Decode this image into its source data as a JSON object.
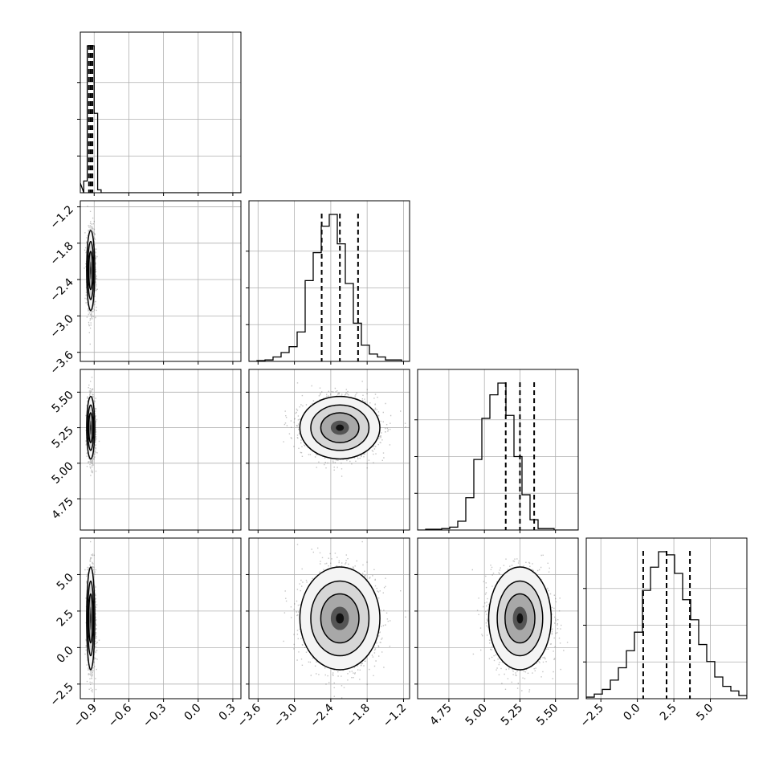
{
  "chart_data": {
    "type": "corner",
    "grid": true,
    "quantile_style": "dashed",
    "colors": {
      "line": "#000000",
      "grid": "#b0b0b0",
      "points": "#555555",
      "density": "#000000"
    },
    "parameters": [
      {
        "range": [
          -1.02,
          0.37
        ],
        "ticks": [
          -0.9,
          -0.6,
          -0.3,
          0.0,
          0.3
        ],
        "tick_labels": [
          "−0.9",
          "−0.6",
          "−0.3",
          "0.0",
          "0.3"
        ],
        "quantiles": [
          -0.945,
          -0.93,
          -0.915
        ],
        "center": -0.93,
        "sd": 0.016,
        "hist_counts": [
          0.08,
          1.0,
          1.0,
          0.54,
          0.02
        ]
      },
      {
        "range": [
          -3.75,
          -1.1
        ],
        "ticks": [
          -3.6,
          -3.0,
          -2.4,
          -1.8,
          -1.2
        ],
        "tick_labels": [
          "−3.6",
          "−3.0",
          "−2.4",
          "−1.8",
          "−1.2"
        ],
        "quantiles": [
          -2.55,
          -2.25,
          -1.95
        ],
        "center": -2.25,
        "sd": 0.3,
        "hist_counts": [
          0,
          0.005,
          0.01,
          0.03,
          0.06,
          0.1,
          0.2,
          0.55,
          0.74,
          0.92,
          1.0,
          0.8,
          0.53,
          0.26,
          0.11,
          0.05,
          0.03,
          0.01,
          0.01,
          0
        ]
      },
      {
        "range": [
          4.53,
          5.66
        ],
        "ticks": [
          4.75,
          5.0,
          5.25,
          5.5
        ],
        "tick_labels": [
          "4.75",
          "5.00",
          "5.25",
          "5.50"
        ],
        "quantiles": [
          5.15,
          5.25,
          5.35
        ],
        "center": 5.25,
        "sd": 0.1,
        "hist_counts": [
          0,
          0.005,
          0.005,
          0.01,
          0.02,
          0.06,
          0.22,
          0.48,
          0.76,
          0.92,
          1.0,
          0.78,
          0.5,
          0.24,
          0.07,
          0.01,
          0.01,
          0,
          0,
          0
        ]
      },
      {
        "range": [
          -3.5,
          7.5
        ],
        "ticks": [
          -2.5,
          0.0,
          2.5,
          5.0
        ],
        "tick_labels": [
          "−2.5",
          "0.0",
          "2.5",
          "5.0"
        ],
        "quantiles": [
          0.4,
          2.0,
          3.6
        ],
        "center": 2.0,
        "sd": 1.6,
        "hist_counts": [
          0.01,
          0.03,
          0.06,
          0.12,
          0.2,
          0.31,
          0.43,
          0.7,
          0.85,
          0.95,
          0.93,
          0.81,
          0.64,
          0.51,
          0.35,
          0.24,
          0.14,
          0.08,
          0.05,
          0.02
        ]
      }
    ]
  }
}
